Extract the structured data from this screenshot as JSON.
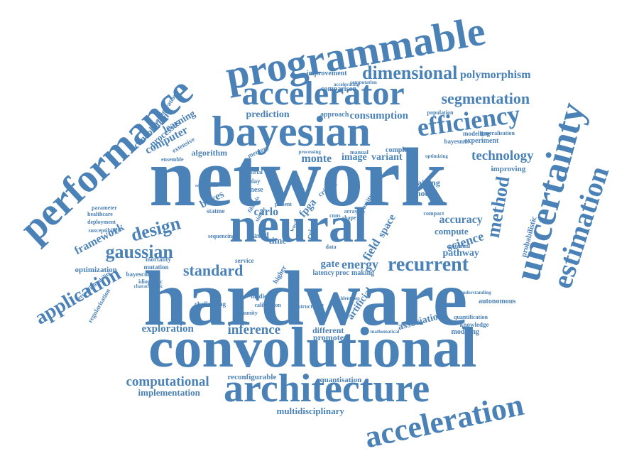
{
  "color": "#4a81b6",
  "words": [
    {
      "text": "network"
    },
    {
      "text": "hardware"
    },
    {
      "text": "convolutional"
    },
    {
      "text": "neural"
    },
    {
      "text": "bayesian"
    },
    {
      "text": "architecture"
    },
    {
      "text": "programmable"
    },
    {
      "text": "uncertainty"
    },
    {
      "text": "performance"
    },
    {
      "text": "accelerator"
    },
    {
      "text": "acceleration"
    },
    {
      "text": "estimation"
    },
    {
      "text": "efficiency"
    },
    {
      "text": "dimensional"
    },
    {
      "text": "application"
    },
    {
      "text": "method"
    },
    {
      "text": "recurrent"
    },
    {
      "text": "gaussian"
    },
    {
      "text": "design"
    },
    {
      "text": "segmentation"
    },
    {
      "text": "standard"
    },
    {
      "text": "computational"
    },
    {
      "text": "inference"
    },
    {
      "text": "technology"
    },
    {
      "text": "polymorphism"
    },
    {
      "text": "consumption"
    },
    {
      "text": "prediction"
    },
    {
      "text": "science"
    },
    {
      "text": "accuracy"
    },
    {
      "text": "energy"
    },
    {
      "text": "computer"
    },
    {
      "text": "framework"
    },
    {
      "text": "exploration"
    },
    {
      "text": "multidisciplinary"
    },
    {
      "text": "implementation"
    },
    {
      "text": "gate"
    },
    {
      "text": "monte"
    },
    {
      "text": "field"
    },
    {
      "text": "image"
    },
    {
      "text": "association"
    },
    {
      "text": "convolution"
    },
    {
      "text": "processes"
    },
    {
      "text": "learning"
    },
    {
      "text": "variant"
    },
    {
      "text": "pathway"
    },
    {
      "text": "compute"
    },
    {
      "text": "artificial"
    },
    {
      "text": "time"
    },
    {
      "text": "fpga"
    },
    {
      "text": "space"
    },
    {
      "text": "carlo"
    },
    {
      "text": "bayes"
    },
    {
      "text": "quantisation"
    },
    {
      "text": "reconfigurable"
    },
    {
      "text": "optimization"
    },
    {
      "text": "algorithm"
    },
    {
      "text": "approach"
    },
    {
      "text": "comparison"
    },
    {
      "text": "improvement"
    },
    {
      "text": "improving"
    },
    {
      "text": "training"
    },
    {
      "text": "model"
    },
    {
      "text": "complex"
    },
    {
      "text": "experiment"
    },
    {
      "text": "bayesnns"
    },
    {
      "text": "modelling"
    },
    {
      "text": "generalisation"
    },
    {
      "text": "population"
    },
    {
      "text": "probabilistic"
    },
    {
      "text": "different"
    },
    {
      "text": "promoter"
    },
    {
      "text": "latency"
    },
    {
      "text": "proc"
    },
    {
      "text": "making"
    },
    {
      "text": "service"
    },
    {
      "text": "medical"
    },
    {
      "text": "calibration"
    },
    {
      "text": "mortality"
    },
    {
      "text": "mutation"
    },
    {
      "text": "bayescnns"
    },
    {
      "text": "idiopathic"
    },
    {
      "text": "healthcare"
    },
    {
      "text": "parameter"
    },
    {
      "text": "deployment"
    },
    {
      "text": "susceptibility"
    },
    {
      "text": "regularisation"
    },
    {
      "text": "reconfigurability"
    },
    {
      "text": "configuration"
    },
    {
      "text": "extensive"
    },
    {
      "text": "ensemble"
    },
    {
      "text": "memory"
    },
    {
      "text": "processing"
    },
    {
      "text": "manual"
    },
    {
      "text": "sparsity"
    },
    {
      "text": "csig"
    },
    {
      "text": "based"
    },
    {
      "text": "chinese"
    },
    {
      "text": "display"
    },
    {
      "text": "industrial"
    },
    {
      "text": "autonomous"
    },
    {
      "text": "modeling"
    },
    {
      "text": "knowledge"
    },
    {
      "text": "potential"
    },
    {
      "text": "compact"
    },
    {
      "text": "statme"
    },
    {
      "text": "patient"
    },
    {
      "text": "cnns"
    },
    {
      "text": "array"
    },
    {
      "text": "sequencing"
    },
    {
      "text": "accelerating"
    },
    {
      "text": "computation"
    },
    {
      "text": "higher"
    },
    {
      "text": "simple"
    },
    {
      "text": "challenging"
    },
    {
      "text": "immunity"
    },
    {
      "text": "critical"
    },
    {
      "text": "work"
    },
    {
      "text": "structured"
    },
    {
      "text": "quantification"
    },
    {
      "text": "understanding"
    },
    {
      "text": "optimizing"
    },
    {
      "text": "shape"
    },
    {
      "text": "data"
    },
    {
      "text": "characteristic"
    },
    {
      "text": "requirement"
    },
    {
      "text": "fibrosis"
    },
    {
      "text": "identifies"
    },
    {
      "text": "mathematical"
    }
  ]
}
